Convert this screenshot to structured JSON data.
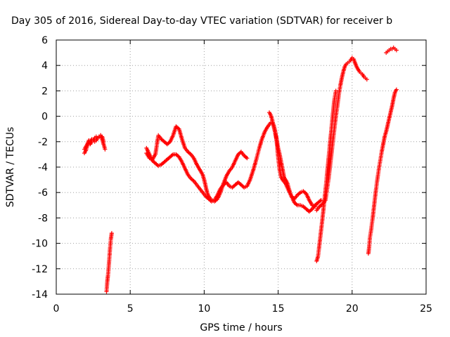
{
  "chart_data": {
    "type": "scatter",
    "title": "Day 305 of 2016, Sidereal Day-to-day VTEC variation (SDTVAR) for receiver b",
    "xlabel": "GPS time / hours",
    "ylabel": "SDTVAR / TECUs",
    "xlim": [
      0,
      25
    ],
    "ylim": [
      -14,
      6
    ],
    "xticks": [
      "0",
      "5",
      "10",
      "15",
      "20",
      "25"
    ],
    "yticks": [
      "-14",
      "-12",
      "-10",
      "-8",
      "-6",
      "-4",
      "-2",
      "0",
      "2",
      "4",
      "6"
    ],
    "xtick_values": [
      0,
      5,
      10,
      15,
      20,
      25
    ],
    "ytick_values": [
      -14,
      -12,
      -10,
      -8,
      -6,
      -4,
      -2,
      0,
      2,
      4,
      6
    ],
    "grid": true,
    "marker": "+",
    "color": "#ff0000",
    "segments": [
      [
        [
          1.9,
          -2.6
        ],
        [
          2.0,
          -2.4
        ],
        [
          2.1,
          -2.2
        ],
        [
          2.2,
          -1.9
        ],
        [
          2.3,
          -2.0
        ],
        [
          2.4,
          -1.8
        ],
        [
          2.5,
          -1.9
        ],
        [
          2.6,
          -1.7
        ],
        [
          2.7,
          -1.6
        ],
        [
          2.8,
          -1.7
        ],
        [
          2.9,
          -1.6
        ],
        [
          3.0,
          -1.5
        ],
        [
          3.1,
          -1.8
        ],
        [
          3.2,
          -2.2
        ],
        [
          3.3,
          -2.6
        ]
      ],
      [
        [
          1.9,
          -2.9
        ],
        [
          2.0,
          -2.7
        ],
        [
          2.1,
          -2.3
        ],
        [
          2.2,
          -2.0
        ],
        [
          2.3,
          -2.2
        ],
        [
          2.4,
          -2.0
        ],
        [
          2.5,
          -1.9
        ],
        [
          2.6,
          -2.0
        ],
        [
          2.7,
          -1.9
        ],
        [
          2.8,
          -1.7
        ],
        [
          2.9,
          -1.6
        ],
        [
          3.0,
          -1.5
        ],
        [
          3.1,
          -1.6
        ],
        [
          3.2,
          -2.0
        ]
      ],
      [
        [
          3.4,
          -13.8
        ],
        [
          3.45,
          -13.0
        ],
        [
          3.5,
          -12.5
        ],
        [
          3.55,
          -11.8
        ],
        [
          3.6,
          -11.0
        ],
        [
          3.65,
          -10.2
        ],
        [
          3.7,
          -9.6
        ],
        [
          3.75,
          -9.2
        ]
      ],
      [
        [
          6.1,
          -2.5
        ],
        [
          6.3,
          -3.0
        ],
        [
          6.5,
          -3.5
        ],
        [
          6.7,
          -3.7
        ],
        [
          6.9,
          -3.9
        ],
        [
          7.1,
          -3.8
        ],
        [
          7.3,
          -3.6
        ],
        [
          7.5,
          -3.4
        ],
        [
          7.7,
          -3.2
        ],
        [
          7.9,
          -3.0
        ],
        [
          8.1,
          -3.0
        ],
        [
          8.3,
          -3.2
        ],
        [
          8.5,
          -3.6
        ],
        [
          8.7,
          -4.1
        ],
        [
          8.9,
          -4.6
        ],
        [
          9.1,
          -4.9
        ],
        [
          9.3,
          -5.1
        ],
        [
          9.5,
          -5.4
        ],
        [
          9.7,
          -5.7
        ],
        [
          9.9,
          -6.0
        ],
        [
          10.1,
          -6.3
        ],
        [
          10.3,
          -6.5
        ],
        [
          10.5,
          -6.7
        ],
        [
          10.7,
          -6.6
        ],
        [
          10.9,
          -6.2
        ],
        [
          11.1,
          -5.7
        ],
        [
          11.3,
          -5.4
        ],
        [
          11.5,
          -5.2
        ],
        [
          11.7,
          -5.5
        ],
        [
          11.9,
          -5.6
        ],
        [
          12.1,
          -5.4
        ],
        [
          12.3,
          -5.2
        ],
        [
          12.5,
          -5.4
        ],
        [
          12.7,
          -5.6
        ],
        [
          12.9,
          -5.5
        ],
        [
          13.1,
          -5.0
        ],
        [
          13.3,
          -4.3
        ],
        [
          13.5,
          -3.5
        ],
        [
          13.7,
          -2.6
        ],
        [
          13.9,
          -1.8
        ],
        [
          14.1,
          -1.2
        ],
        [
          14.3,
          -0.8
        ],
        [
          14.5,
          -0.5
        ],
        [
          14.6,
          -0.5
        ],
        [
          14.7,
          -0.7
        ],
        [
          14.8,
          -1.2
        ],
        [
          14.9,
          -2.0
        ],
        [
          15.0,
          -3.2
        ],
        [
          15.1,
          -4.2
        ],
        [
          15.2,
          -4.8
        ],
        [
          15.3,
          -5.0
        ],
        [
          15.5,
          -5.3
        ],
        [
          15.7,
          -5.8
        ],
        [
          15.9,
          -6.3
        ],
        [
          16.1,
          -6.8
        ],
        [
          16.3,
          -7.0
        ],
        [
          16.5,
          -7.0
        ],
        [
          16.7,
          -7.1
        ],
        [
          16.9,
          -7.3
        ],
        [
          17.1,
          -7.5
        ],
        [
          17.3,
          -7.3
        ],
        [
          17.5,
          -7.0
        ],
        [
          17.7,
          -6.8
        ],
        [
          17.9,
          -6.6
        ]
      ],
      [
        [
          6.1,
          -2.9
        ],
        [
          6.3,
          -3.3
        ],
        [
          6.5,
          -3.4
        ],
        [
          6.7,
          -3.0
        ],
        [
          6.9,
          -1.5
        ],
        [
          7.1,
          -1.8
        ],
        [
          7.3,
          -2.0
        ],
        [
          7.5,
          -2.2
        ],
        [
          7.7,
          -2.0
        ],
        [
          7.9,
          -1.5
        ],
        [
          8.1,
          -0.8
        ],
        [
          8.3,
          -1.0
        ],
        [
          8.5,
          -1.8
        ],
        [
          8.7,
          -2.5
        ],
        [
          8.9,
          -2.8
        ],
        [
          9.1,
          -3.0
        ],
        [
          9.3,
          -3.3
        ],
        [
          9.5,
          -3.8
        ],
        [
          9.7,
          -4.2
        ],
        [
          9.9,
          -4.6
        ],
        [
          10.0,
          -5.0
        ],
        [
          10.1,
          -5.5
        ],
        [
          10.2,
          -6.0
        ],
        [
          10.3,
          -6.3
        ],
        [
          10.5,
          -6.6
        ],
        [
          10.7,
          -6.7
        ],
        [
          10.9,
          -6.5
        ],
        [
          11.1,
          -6.0
        ],
        [
          11.3,
          -5.3
        ],
        [
          11.5,
          -4.7
        ],
        [
          11.7,
          -4.3
        ],
        [
          11.9,
          -4.0
        ],
        [
          12.1,
          -3.5
        ],
        [
          12.3,
          -3.0
        ],
        [
          12.5,
          -2.8
        ],
        [
          12.7,
          -3.1
        ],
        [
          12.9,
          -3.3
        ]
      ],
      [
        [
          14.4,
          0.3
        ],
        [
          14.5,
          0.1
        ],
        [
          14.6,
          -0.3
        ],
        [
          14.7,
          -0.8
        ],
        [
          14.8,
          -1.3
        ],
        [
          14.9,
          -1.8
        ],
        [
          15.0,
          -2.5
        ],
        [
          15.1,
          -3.0
        ],
        [
          15.2,
          -3.6
        ],
        [
          15.3,
          -4.2
        ],
        [
          15.4,
          -4.8
        ],
        [
          15.5,
          -5.0
        ],
        [
          15.6,
          -5.2
        ],
        [
          15.7,
          -5.6
        ],
        [
          15.8,
          -6.0
        ],
        [
          15.9,
          -6.3
        ],
        [
          16.1,
          -6.5
        ],
        [
          16.3,
          -6.2
        ],
        [
          16.5,
          -6.0
        ],
        [
          16.7,
          -5.9
        ],
        [
          16.9,
          -6.1
        ],
        [
          17.1,
          -6.6
        ],
        [
          17.3,
          -7.0
        ],
        [
          17.5,
          -7.1
        ]
      ],
      [
        [
          17.6,
          -11.4
        ],
        [
          17.7,
          -11.0
        ],
        [
          17.8,
          -10.0
        ],
        [
          17.9,
          -9.0
        ],
        [
          18.0,
          -8.0
        ],
        [
          18.1,
          -6.9
        ],
        [
          18.2,
          -5.8
        ],
        [
          18.3,
          -4.6
        ],
        [
          18.4,
          -3.4
        ],
        [
          18.5,
          -2.2
        ],
        [
          18.6,
          -1.0
        ],
        [
          18.7,
          0.2
        ],
        [
          18.8,
          1.3
        ],
        [
          18.9,
          2.0
        ]
      ],
      [
        [
          17.6,
          -7.4
        ],
        [
          17.8,
          -7.1
        ],
        [
          18.0,
          -6.9
        ],
        [
          18.2,
          -6.6
        ],
        [
          18.3,
          -5.8
        ],
        [
          18.4,
          -5.0
        ],
        [
          18.5,
          -4.0
        ],
        [
          18.6,
          -3.0
        ],
        [
          18.7,
          -2.0
        ],
        [
          18.8,
          -1.0
        ],
        [
          18.9,
          0.0
        ],
        [
          19.0,
          0.8
        ],
        [
          19.1,
          1.7
        ],
        [
          19.2,
          2.4
        ],
        [
          19.3,
          3.0
        ],
        [
          19.4,
          3.5
        ],
        [
          19.5,
          3.9
        ],
        [
          19.6,
          4.1
        ],
        [
          19.7,
          4.2
        ],
        [
          19.8,
          4.3
        ],
        [
          19.9,
          4.4
        ],
        [
          20.0,
          4.6
        ],
        [
          20.1,
          4.5
        ],
        [
          20.2,
          4.2
        ],
        [
          20.3,
          3.9
        ],
        [
          20.4,
          3.7
        ],
        [
          20.5,
          3.5
        ],
        [
          20.6,
          3.4
        ],
        [
          20.7,
          3.3
        ],
        [
          20.8,
          3.1
        ],
        [
          20.9,
          3.0
        ],
        [
          21.0,
          2.9
        ]
      ],
      [
        [
          21.1,
          -10.8
        ],
        [
          21.15,
          -10.3
        ],
        [
          21.2,
          -9.6
        ],
        [
          21.3,
          -8.8
        ],
        [
          21.4,
          -7.9
        ],
        [
          21.5,
          -6.9
        ],
        [
          21.6,
          -5.9
        ],
        [
          21.7,
          -5.0
        ],
        [
          21.8,
          -4.2
        ],
        [
          21.9,
          -3.5
        ],
        [
          22.0,
          -2.8
        ],
        [
          22.1,
          -2.2
        ],
        [
          22.2,
          -1.6
        ],
        [
          22.3,
          -1.2
        ],
        [
          22.4,
          -0.7
        ],
        [
          22.5,
          -0.2
        ],
        [
          22.6,
          0.3
        ],
        [
          22.7,
          0.8
        ],
        [
          22.8,
          1.4
        ],
        [
          22.9,
          1.9
        ],
        [
          23.0,
          2.1
        ]
      ],
      [
        [
          22.3,
          5.0
        ],
        [
          22.4,
          5.1
        ],
        [
          22.5,
          5.2
        ],
        [
          22.6,
          5.3
        ],
        [
          22.7,
          5.3
        ],
        [
          22.8,
          5.4
        ],
        [
          22.9,
          5.3
        ],
        [
          23.0,
          5.2
        ]
      ]
    ]
  }
}
